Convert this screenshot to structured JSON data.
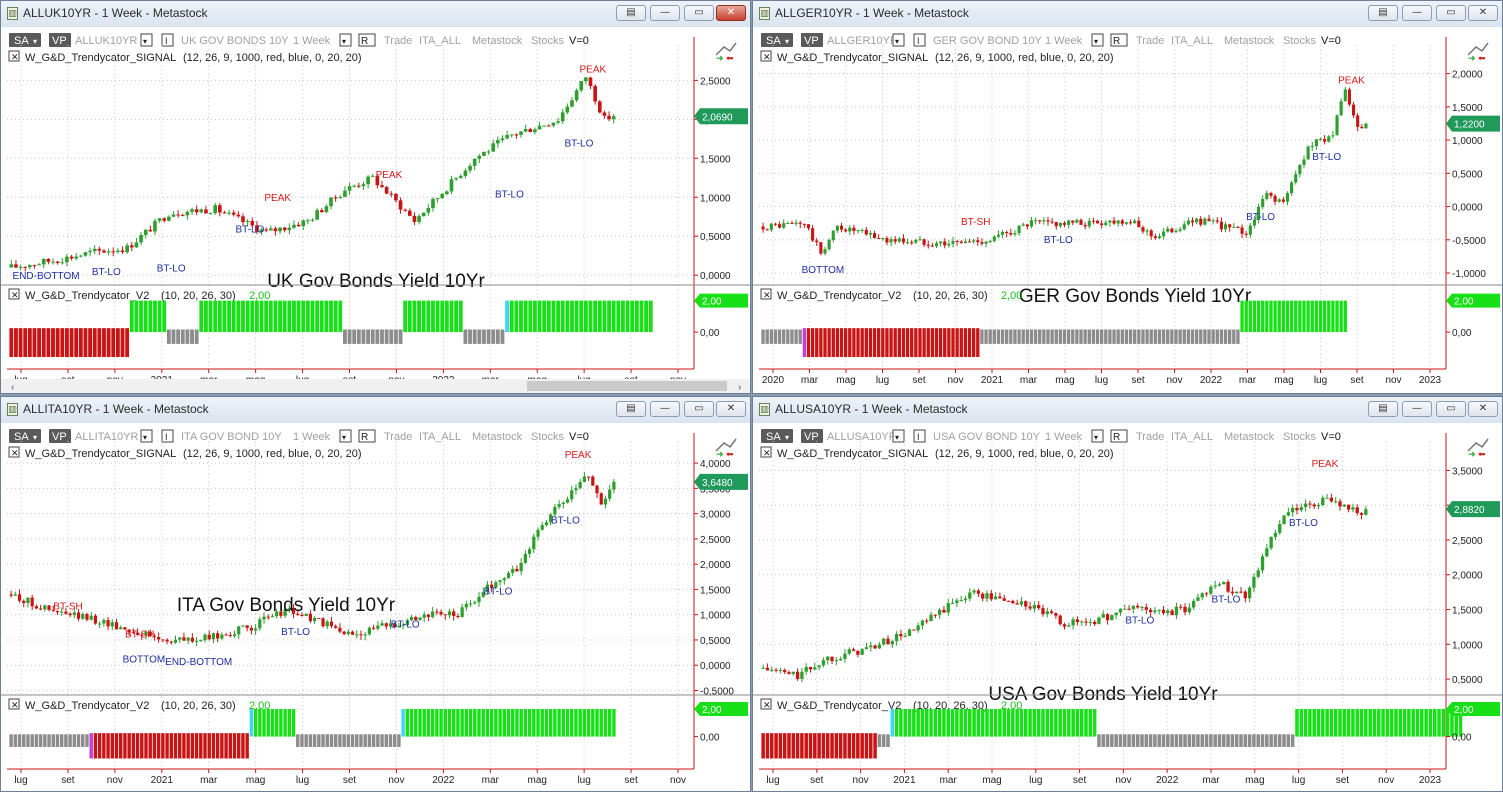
{
  "colors": {
    "up": "#2e9e2e",
    "down": "#c81414",
    "peak": "#d81818",
    "btlo": "#1c2e9e",
    "ind_green": "#18e018",
    "ind_red": "#c81414",
    "ind_gray": "#8c8c8c",
    "ind_cyan": "#3cd8f0",
    "ind_magenta": "#c83cd8"
  },
  "windows": [
    {
      "title": "ALLUK10YR - 1 Week - Metastock",
      "toolbar": {
        "sa": "SA",
        "vp": "VP",
        "symbol": "ALLUK10YR",
        "name": "UK GOV BONDS 10Y",
        "period": "1 Week",
        "r": "R",
        "trade": "Trade",
        "list": "ITA_ALL",
        "source": "Metastock",
        "stocks": "Stocks",
        "v": "V=0"
      },
      "signal_label": "W_G&D_Trendycator_SIGNAL",
      "signal_params": "(12, 26, 9, 1000, red, blue, 0, 20, 20)",
      "indicator_label": "W_G&D_Trendycator_V2",
      "indicator_params": "(10, 20, 26, 30)",
      "indicator_value": "2,00",
      "indicator_badge": "2,00",
      "indicator_zero": "0,00",
      "chart_title": "UK Gov Bonds Yield 10Yr",
      "price_badge": "2,0690",
      "months": [
        "lug",
        "set",
        "nov",
        "2021",
        "mar",
        "mag",
        "lug",
        "set",
        "nov",
        "2022",
        "mar",
        "mag",
        "lug",
        "set",
        "nov"
      ],
      "chart_data": {
        "type": "candlestick",
        "ylim": [
          -0.1,
          2.8
        ],
        "yticks": [
          "2,5000",
          "2,0000",
          "1,5000",
          "1,0000",
          "0,5000",
          "0,0000"
        ],
        "ytick_values": [
          2.5,
          2.0,
          1.5,
          1.0,
          0.5,
          0.0
        ],
        "start": 0.1,
        "knots": [
          [
            0,
            0.1
          ],
          [
            10,
            0.2
          ],
          [
            18,
            0.3
          ],
          [
            25,
            0.35
          ],
          [
            34,
            0.8
          ],
          [
            44,
            0.85
          ],
          [
            55,
            0.55
          ],
          [
            64,
            0.7
          ],
          [
            72,
            1.1
          ],
          [
            78,
            1.25
          ],
          [
            87,
            0.7
          ],
          [
            92,
            1.0
          ],
          [
            100,
            1.5
          ],
          [
            108,
            1.8
          ],
          [
            118,
            2.0
          ],
          [
            124,
            2.55
          ],
          [
            128,
            2.0
          ],
          [
            130,
            2.05
          ]
        ],
        "annotations": [
          {
            "text": "PEAK",
            "x": 126,
            "y": 2.6,
            "kind": "peak"
          },
          {
            "text": "PEAK",
            "x": 82,
            "y": 1.25,
            "kind": "peak"
          },
          {
            "text": "PEAK",
            "x": 58,
            "y": 0.95,
            "kind": "peak"
          },
          {
            "text": "BT-LO",
            "x": 52,
            "y": 0.55,
            "kind": "btlo"
          },
          {
            "text": "BT-LO",
            "x": 108,
            "y": 1.0,
            "kind": "btlo"
          },
          {
            "text": "BT-LO",
            "x": 123,
            "y": 1.65,
            "kind": "btlo"
          },
          {
            "text": "BT-LO",
            "x": 35,
            "y": 0.05,
            "kind": "btlo"
          },
          {
            "text": "BT-LO",
            "x": 21,
            "y": 0.0,
            "kind": "btlo"
          },
          {
            "text": "END-BOTTOM",
            "x": 8,
            "y": -0.05,
            "kind": "btlo"
          }
        ],
        "indicator": [
          [
            "red",
            26
          ],
          [
            "green",
            8
          ],
          [
            "gray",
            7
          ],
          [
            "green",
            31
          ],
          [
            "gray",
            13
          ],
          [
            "green",
            13
          ],
          [
            "gray",
            9
          ],
          [
            "cyan",
            1
          ],
          [
            "green",
            31
          ]
        ]
      }
    },
    {
      "title": "ALLGER10YR - 1 Week - Metastock",
      "toolbar": {
        "sa": "SA",
        "vp": "VP",
        "symbol": "ALLGER10YR",
        "name": "GER GOV BOND 10Y",
        "period": "1 Week",
        "r": "R",
        "trade": "Trade",
        "list": "ITA_ALL",
        "source": "Metastock",
        "stocks": "Stocks",
        "v": "V=0"
      },
      "signal_label": "W_G&D_Trendycator_SIGNAL",
      "signal_params": "(12, 26, 9, 1000, red, blue, 0, 20, 20)",
      "indicator_label": "W_G&D_Trendycator_V2",
      "indicator_params": "(10, 20, 26, 30)",
      "indicator_value": "2,00",
      "indicator_badge": "2,00",
      "indicator_zero": "0,00",
      "chart_title": "GER Gov Bonds Yield 10Yr",
      "price_badge": "1,2200",
      "months": [
        "2020",
        "mar",
        "mag",
        "lug",
        "set",
        "nov",
        "2021",
        "mar",
        "mag",
        "lug",
        "set",
        "nov",
        "2022",
        "mar",
        "mag",
        "lug",
        "set",
        "nov",
        "2023"
      ],
      "chart_data": {
        "type": "candlestick",
        "ylim": [
          -1.15,
          2.25
        ],
        "yticks": [
          "2,0000",
          "1,5000",
          "1,0000",
          "0,5000",
          "0,0000",
          "-0,5000",
          "-1,0000"
        ],
        "ytick_values": [
          2.0,
          1.5,
          1.0,
          0.5,
          0.0,
          -0.5,
          -1.0
        ],
        "start": -0.3,
        "knots": [
          [
            0,
            -0.3
          ],
          [
            10,
            -0.25
          ],
          [
            14,
            -0.7
          ],
          [
            18,
            -0.3
          ],
          [
            30,
            -0.5
          ],
          [
            45,
            -0.55
          ],
          [
            55,
            -0.5
          ],
          [
            65,
            -0.25
          ],
          [
            78,
            -0.25
          ],
          [
            88,
            -0.2
          ],
          [
            95,
            -0.45
          ],
          [
            105,
            -0.2
          ],
          [
            112,
            -0.3
          ],
          [
            117,
            -0.4
          ],
          [
            122,
            0.2
          ],
          [
            126,
            0.05
          ],
          [
            132,
            0.9
          ],
          [
            138,
            1.1
          ],
          [
            141,
            1.75
          ],
          [
            144,
            1.15
          ],
          [
            146,
            1.2
          ]
        ],
        "annotations": [
          {
            "text": "PEAK",
            "x": 143,
            "y": 1.85,
            "kind": "peak"
          },
          {
            "text": "BT-SH",
            "x": 52,
            "y": -0.28,
            "kind": "peak"
          },
          {
            "text": "BT-LO",
            "x": 72,
            "y": -0.55,
            "kind": "btlo"
          },
          {
            "text": "BT-LO",
            "x": 121,
            "y": -0.2,
            "kind": "btlo"
          },
          {
            "text": "BT-LO",
            "x": 137,
            "y": 0.7,
            "kind": "btlo"
          },
          {
            "text": "BOTTOM",
            "x": 15,
            "y": -1.0,
            "kind": "btlo"
          }
        ],
        "indicator": [
          [
            "gray",
            10
          ],
          [
            "magenta",
            1
          ],
          [
            "red",
            42
          ],
          [
            "gray",
            33
          ],
          [
            "gray",
            10
          ],
          [
            "gray",
            10
          ],
          [
            "gray",
            10
          ],
          [
            "green",
            26
          ]
        ]
      }
    },
    {
      "title": "ALLITA10YR - 1 Week - Metastock",
      "toolbar": {
        "sa": "SA",
        "vp": "VP",
        "symbol": "ALLITA10YR",
        "name": "ITA GOV BOND 10Y",
        "period": "1 Week",
        "r": "R",
        "trade": "Trade",
        "list": "ITA_ALL",
        "source": "Metastock",
        "stocks": "Stocks",
        "v": "V=0"
      },
      "signal_label": "W_G&D_Trendycator_SIGNAL",
      "signal_params": "(12, 26, 9, 1000, red, blue, 0, 20, 20)",
      "indicator_label": "W_G&D_Trendycator_V2",
      "indicator_params": "(10, 20, 26, 30)",
      "indicator_value": "2,00",
      "indicator_badge": "2,00",
      "indicator_zero": "0,00",
      "chart_title": "ITA Gov Bonds Yield 10Yr",
      "price_badge": "3,6480",
      "months": [
        "lug",
        "set",
        "nov",
        "2021",
        "mar",
        "mag",
        "lug",
        "set",
        "nov",
        "2022",
        "mar",
        "mag",
        "lug",
        "set",
        "nov"
      ],
      "chart_data": {
        "type": "candlestick",
        "ylim": [
          -0.55,
          4.2
        ],
        "yticks": [
          "4,0000",
          "3,5000",
          "3,0000",
          "2,5000",
          "2,0000",
          "1,5000",
          "1,0000",
          "0,5000",
          "0,0000",
          "-0,5000"
        ],
        "ytick_values": [
          4.0,
          3.5,
          3.0,
          2.5,
          2.0,
          1.5,
          1.0,
          0.5,
          0.0,
          -0.5
        ],
        "start": 1.4,
        "knots": [
          [
            0,
            1.4
          ],
          [
            10,
            1.05
          ],
          [
            20,
            0.9
          ],
          [
            28,
            0.7
          ],
          [
            36,
            0.5
          ],
          [
            45,
            0.5
          ],
          [
            57,
            0.75
          ],
          [
            65,
            1.1
          ],
          [
            72,
            0.9
          ],
          [
            80,
            0.6
          ],
          [
            90,
            0.8
          ],
          [
            98,
            1.0
          ],
          [
            106,
            1.0
          ],
          [
            114,
            1.6
          ],
          [
            120,
            1.9
          ],
          [
            126,
            2.8
          ],
          [
            133,
            3.4
          ],
          [
            137,
            3.8
          ],
          [
            140,
            3.2
          ],
          [
            143,
            3.6
          ]
        ],
        "annotations": [
          {
            "text": "PEAK",
            "x": 135,
            "y": 4.1,
            "kind": "peak"
          },
          {
            "text": "BT-SH",
            "x": 14,
            "y": 1.1,
            "kind": "peak"
          },
          {
            "text": "BT-SH",
            "x": 31,
            "y": 0.55,
            "kind": "peak"
          },
          {
            "text": "BOTTOM",
            "x": 32,
            "y": 0.05,
            "kind": "btlo"
          },
          {
            "text": "END-BOTTOM",
            "x": 45,
            "y": 0.0,
            "kind": "btlo"
          },
          {
            "text": "BT-LO",
            "x": 68,
            "y": 0.6,
            "kind": "btlo"
          },
          {
            "text": "BT-LO",
            "x": 94,
            "y": 0.75,
            "kind": "btlo"
          },
          {
            "text": "BT-LO",
            "x": 116,
            "y": 1.4,
            "kind": "btlo"
          },
          {
            "text": "BT-LO",
            "x": 132,
            "y": 2.8,
            "kind": "btlo"
          }
        ],
        "indicator": [
          [
            "gray",
            19
          ],
          [
            "magenta",
            1
          ],
          [
            "red",
            37
          ],
          [
            "cyan",
            1
          ],
          [
            "green",
            10
          ],
          [
            "gray",
            16
          ],
          [
            "gray",
            4
          ],
          [
            "gray",
            5
          ],
          [
            "cyan",
            1
          ],
          [
            "green",
            50
          ]
        ]
      }
    },
    {
      "title": "ALLUSA10YR - 1 Week - Metastock",
      "toolbar": {
        "sa": "SA",
        "vp": "VP",
        "symbol": "ALLUSA10YR",
        "name": "USA GOV BOND 10Y",
        "period": "1 Week",
        "r": "R",
        "trade": "Trade",
        "list": "ITA_ALL",
        "source": "Metastock",
        "stocks": "Stocks",
        "v": "V=0"
      },
      "signal_label": "W_G&D_Trendycator_SIGNAL",
      "signal_params": "(12, 26, 9, 1000, red, blue, 0, 20, 20)",
      "indicator_label": "W_G&D_Trendycator_V2",
      "indicator_params": "(10, 20, 26, 30)",
      "indicator_value": "2,00",
      "indicator_badge": "2,00",
      "indicator_zero": "0,00",
      "chart_title": "USA Gov Bonds Yield 10Yr",
      "price_badge": "2,8820",
      "months": [
        "lug",
        "set",
        "nov",
        "2021",
        "mar",
        "mag",
        "lug",
        "set",
        "nov",
        "2022",
        "mar",
        "mag",
        "lug",
        "set",
        "nov",
        "2023"
      ],
      "chart_data": {
        "type": "candlestick",
        "ylim": [
          0.3,
          3.75
        ],
        "yticks": [
          "3,5000",
          "3,0000",
          "2,5000",
          "2,0000",
          "1,5000",
          "1,0000",
          "0,5000"
        ],
        "ytick_values": [
          3.5,
          3.0,
          2.5,
          2.0,
          1.5,
          1.0,
          0.5
        ],
        "start": 0.65,
        "knots": [
          [
            0,
            0.65
          ],
          [
            8,
            0.55
          ],
          [
            15,
            0.8
          ],
          [
            25,
            0.95
          ],
          [
            35,
            1.2
          ],
          [
            42,
            1.5
          ],
          [
            48,
            1.75
          ],
          [
            55,
            1.65
          ],
          [
            62,
            1.55
          ],
          [
            70,
            1.3
          ],
          [
            78,
            1.35
          ],
          [
            86,
            1.55
          ],
          [
            92,
            1.45
          ],
          [
            98,
            1.5
          ],
          [
            105,
            1.9
          ],
          [
            112,
            1.7
          ],
          [
            117,
            2.4
          ],
          [
            122,
            2.9
          ],
          [
            128,
            3.0
          ],
          [
            132,
            3.1
          ],
          [
            136,
            2.95
          ],
          [
            140,
            2.9
          ]
        ],
        "annotations": [
          {
            "text": "PEAK",
            "x": 131,
            "y": 3.55,
            "kind": "peak"
          },
          {
            "text": "BT-LO",
            "x": 88,
            "y": 1.3,
            "kind": "btlo"
          },
          {
            "text": "BT-LO",
            "x": 108,
            "y": 1.6,
            "kind": "btlo"
          },
          {
            "text": "BT-LO",
            "x": 126,
            "y": 2.7,
            "kind": "btlo"
          }
        ],
        "indicator": [
          [
            "red",
            27
          ],
          [
            "gray",
            3
          ],
          [
            "cyan",
            1
          ],
          [
            "green",
            47
          ],
          [
            "gray",
            16
          ],
          [
            "gray",
            20
          ],
          [
            "gray",
            10
          ],
          [
            "green",
            39
          ]
        ]
      }
    }
  ]
}
